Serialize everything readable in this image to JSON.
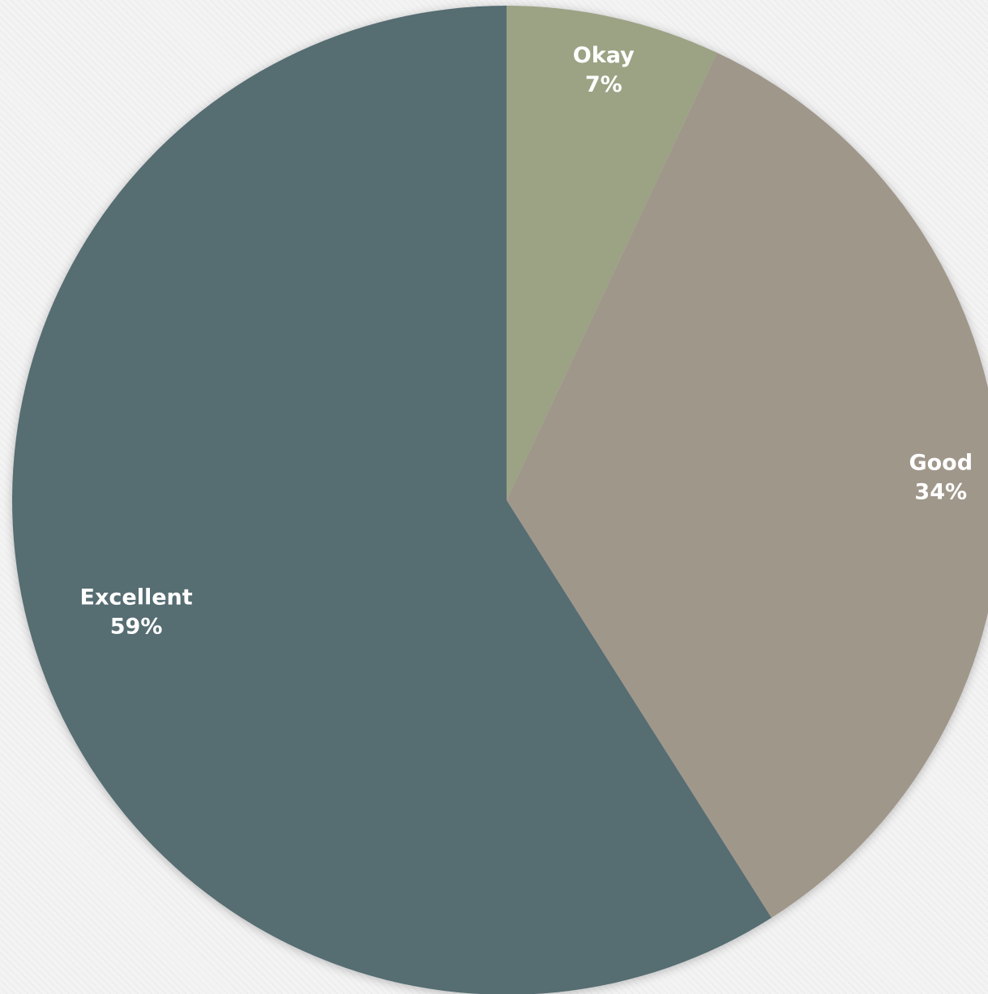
{
  "chart_data": {
    "type": "pie",
    "title": "",
    "start_angle_deg": -90,
    "direction": "clockwise",
    "slices": [
      {
        "label": "Okay",
        "value": 7,
        "display": "7%",
        "color": "#9ca385"
      },
      {
        "label": "Good",
        "value": 34,
        "display": "34%",
        "color": "#a0978b"
      },
      {
        "label": "Excellent",
        "value": 59,
        "display": "59%",
        "color": "#576d72"
      }
    ]
  }
}
